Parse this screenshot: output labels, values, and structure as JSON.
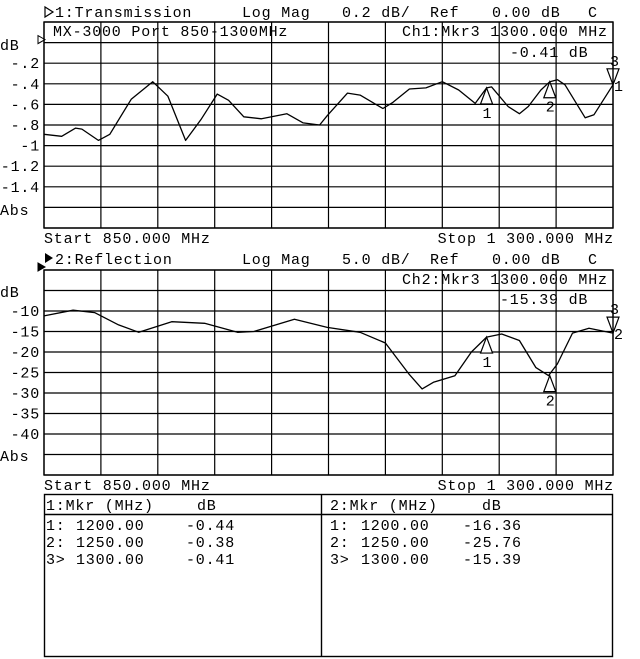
{
  "channels": [
    {
      "header": {
        "title": "1:Transmission",
        "format": "Log Mag",
        "scale": "0.2 dB/",
        "ref_label": "Ref",
        "ref_value": "0.00 dB",
        "coupling": "C",
        "active_icon": "outline-triangle-right-icon"
      },
      "caption": "MX-3000 Port 850-1300MHz",
      "active_marker": {
        "label": "Ch1:Mkr3 1300.000 MHz",
        "value": "-0.41 dB"
      },
      "y_unit": "dB",
      "format_label": "Abs",
      "start": "Start 850.000 MHz",
      "stop": "Stop 1 300.000 MHz",
      "trace_label": "1"
    },
    {
      "header": {
        "title": "2:Reflection",
        "format": "Log Mag",
        "scale": "5.0 dB/",
        "ref_label": "Ref",
        "ref_value": "0.00 dB",
        "coupling": "C",
        "active_icon": "filled-triangle-right-icon"
      },
      "caption": "",
      "active_marker": {
        "label": "Ch2:Mkr3 1300.000 MHz",
        "value": "-15.39 dB"
      },
      "y_unit": "dB",
      "format_label": "Abs",
      "start": "Start 850.000 MHz",
      "stop": "Stop 1 300.000 MHz",
      "trace_label": "2"
    }
  ],
  "marker_table": [
    {
      "header": {
        "marker": "1:Mkr (MHz)",
        "unit": "dB"
      },
      "rows": [
        {
          "id": "1:",
          "freq": "1200.00",
          "value": "-0.44"
        },
        {
          "id": "2:",
          "freq": "1250.00",
          "value": "-0.38"
        },
        {
          "id": "3>",
          "freq": "1300.00",
          "value": "-0.41"
        }
      ]
    },
    {
      "header": {
        "marker": "2:Mkr (MHz)",
        "unit": "dB"
      },
      "rows": [
        {
          "id": "1:",
          "freq": "1200.00",
          "value": "-16.36"
        },
        {
          "id": "2:",
          "freq": "1250.00",
          "value": "-25.76"
        },
        {
          "id": "3>",
          "freq": "1300.00",
          "value": "-15.39"
        }
      ]
    }
  ],
  "chart_data": [
    {
      "type": "line",
      "xlim": [
        850,
        1300
      ],
      "ylim": [
        -1.8,
        0.2
      ],
      "reference": 0,
      "grid": true,
      "yticks": [
        {
          "v": -0.2,
          "label": "-.2"
        },
        {
          "v": -0.4,
          "label": "-.4"
        },
        {
          "v": -0.6,
          "label": "-.6"
        },
        {
          "v": -0.8,
          "label": "-.8"
        },
        {
          "v": -1.0,
          "label": "-1"
        },
        {
          "v": -1.2,
          "label": "-1.2"
        },
        {
          "v": -1.4,
          "label": "-1.4"
        }
      ],
      "x": [
        850,
        864,
        875,
        880,
        893,
        902,
        919,
        936,
        948,
        962,
        974,
        987,
        996,
        1008,
        1022,
        1042,
        1055,
        1068,
        1074,
        1090,
        1100,
        1118,
        1126,
        1139,
        1152,
        1165,
        1178,
        1191,
        1200,
        1204,
        1217,
        1226,
        1233,
        1243,
        1250,
        1256,
        1262,
        1278,
        1285,
        1300
      ],
      "y": [
        -0.89,
        -0.91,
        -0.83,
        -0.84,
        -0.95,
        -0.89,
        -0.55,
        -0.38,
        -0.52,
        -0.95,
        -0.75,
        -0.5,
        -0.56,
        -0.72,
        -0.74,
        -0.69,
        -0.78,
        -0.8,
        -0.71,
        -0.49,
        -0.51,
        -0.64,
        -0.58,
        -0.45,
        -0.44,
        -0.38,
        -0.46,
        -0.59,
        -0.44,
        -0.43,
        -0.62,
        -0.69,
        -0.62,
        -0.46,
        -0.38,
        -0.36,
        -0.41,
        -0.73,
        -0.7,
        -0.41
      ],
      "markers": [
        {
          "label": "1",
          "x": 1200,
          "y": -0.44
        },
        {
          "label": "2",
          "x": 1250,
          "y": -0.38
        },
        {
          "label": "3",
          "x": 1300,
          "y": -0.41,
          "active": true
        }
      ]
    },
    {
      "type": "line",
      "xlim": [
        850,
        1300
      ],
      "ylim": [
        -50,
        0
      ],
      "reference": 0,
      "grid": true,
      "yticks": [
        {
          "v": -10,
          "label": "-10"
        },
        {
          "v": -15,
          "label": "-15"
        },
        {
          "v": -20,
          "label": "-20"
        },
        {
          "v": -25,
          "label": "-25"
        },
        {
          "v": -30,
          "label": "-30"
        },
        {
          "v": -35,
          "label": "-35"
        },
        {
          "v": -40,
          "label": "-40"
        }
      ],
      "x": [
        850,
        873,
        890,
        909,
        925,
        951,
        977,
        1003,
        1016,
        1048,
        1074,
        1100,
        1120,
        1139,
        1149,
        1158,
        1175,
        1188,
        1200,
        1212,
        1226,
        1239,
        1249,
        1256,
        1268,
        1281,
        1300
      ],
      "y": [
        -11.2,
        -9.8,
        -10.4,
        -13.4,
        -15.2,
        -12.6,
        -13.0,
        -15.2,
        -15.0,
        -12.0,
        -14.0,
        -15.2,
        -17.8,
        -25.5,
        -29.0,
        -27.4,
        -25.8,
        -20.0,
        -16.36,
        -15.6,
        -17.2,
        -23.8,
        -25.76,
        -22.9,
        -15.4,
        -14.2,
        -15.39
      ],
      "markers": [
        {
          "label": "1",
          "x": 1200,
          "y": -16.36
        },
        {
          "label": "2",
          "x": 1250,
          "y": -25.76
        },
        {
          "label": "3",
          "x": 1300,
          "y": -15.39,
          "active": true
        }
      ]
    }
  ]
}
